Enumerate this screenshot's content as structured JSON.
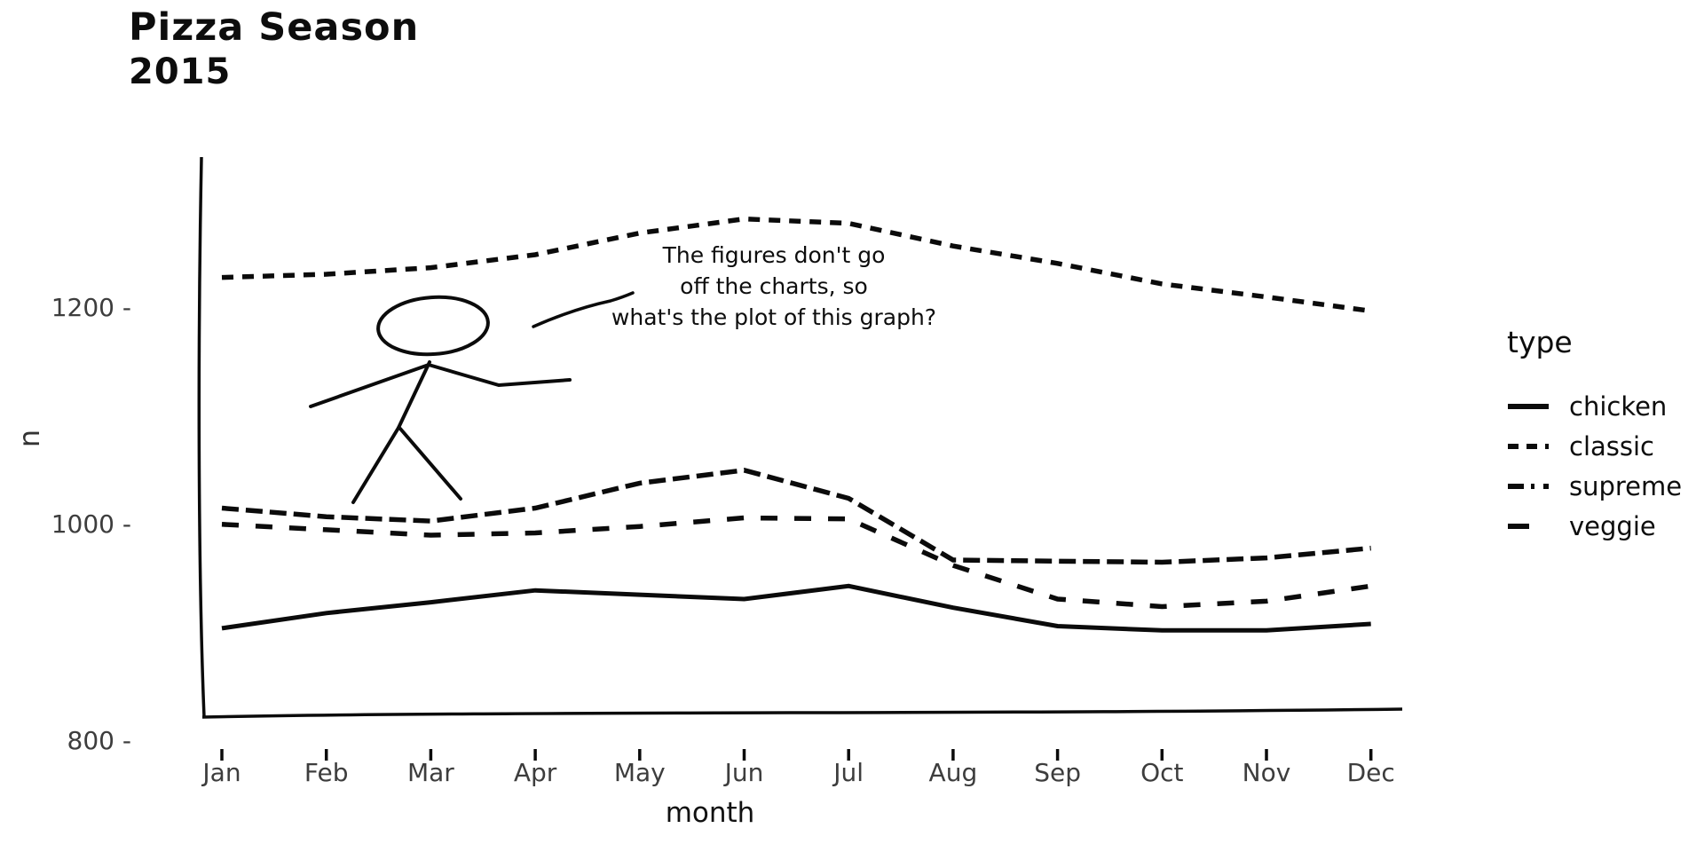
{
  "title": "Pizza Season",
  "subtitle": "2015",
  "annotation": {
    "lines": [
      "The figures don't go",
      "off the charts, so",
      "what's the plot of this graph?"
    ]
  },
  "legend": {
    "title": "type"
  },
  "chart_data": {
    "type": "line",
    "x": [
      "Jan",
      "Feb",
      "Mar",
      "Apr",
      "May",
      "Jun",
      "Jul",
      "Aug",
      "Sep",
      "Oct",
      "Nov",
      "Dec"
    ],
    "xlabel": "month",
    "ylabel": "n",
    "yticks": [
      1200,
      1000,
      800
    ],
    "ytick_labels": [
      "1200 -",
      "1000 -",
      "800 -"
    ],
    "ylim": [
      800,
      1350
    ],
    "grid": false,
    "legend_position": "right",
    "style": "xkcd-hand-drawn",
    "series": [
      {
        "name": "chicken",
        "linetype": "solid",
        "values": [
          905,
          919,
          929,
          940,
          936,
          932,
          944,
          924,
          907,
          903,
          903,
          909
        ]
      },
      {
        "name": "classic",
        "linetype": "dashed",
        "values": [
          1229,
          1232,
          1238,
          1250,
          1270,
          1283,
          1279,
          1258,
          1242,
          1223,
          1211,
          1198
        ]
      },
      {
        "name": "supreme",
        "linetype": "dotdash",
        "values": [
          1016,
          1008,
          1004,
          1016,
          1039,
          1051,
          1025,
          968,
          967,
          966,
          970,
          979
        ]
      },
      {
        "name": "veggie",
        "linetype": "longdash",
        "values": [
          1001,
          996,
          991,
          993,
          999,
          1007,
          1006,
          963,
          932,
          925,
          930,
          944
        ]
      }
    ]
  },
  "colors": {
    "line": "#0b0b0b",
    "text": "#0d0d0d",
    "muted_text": "#3d3d3d",
    "background": "#ffffff"
  }
}
